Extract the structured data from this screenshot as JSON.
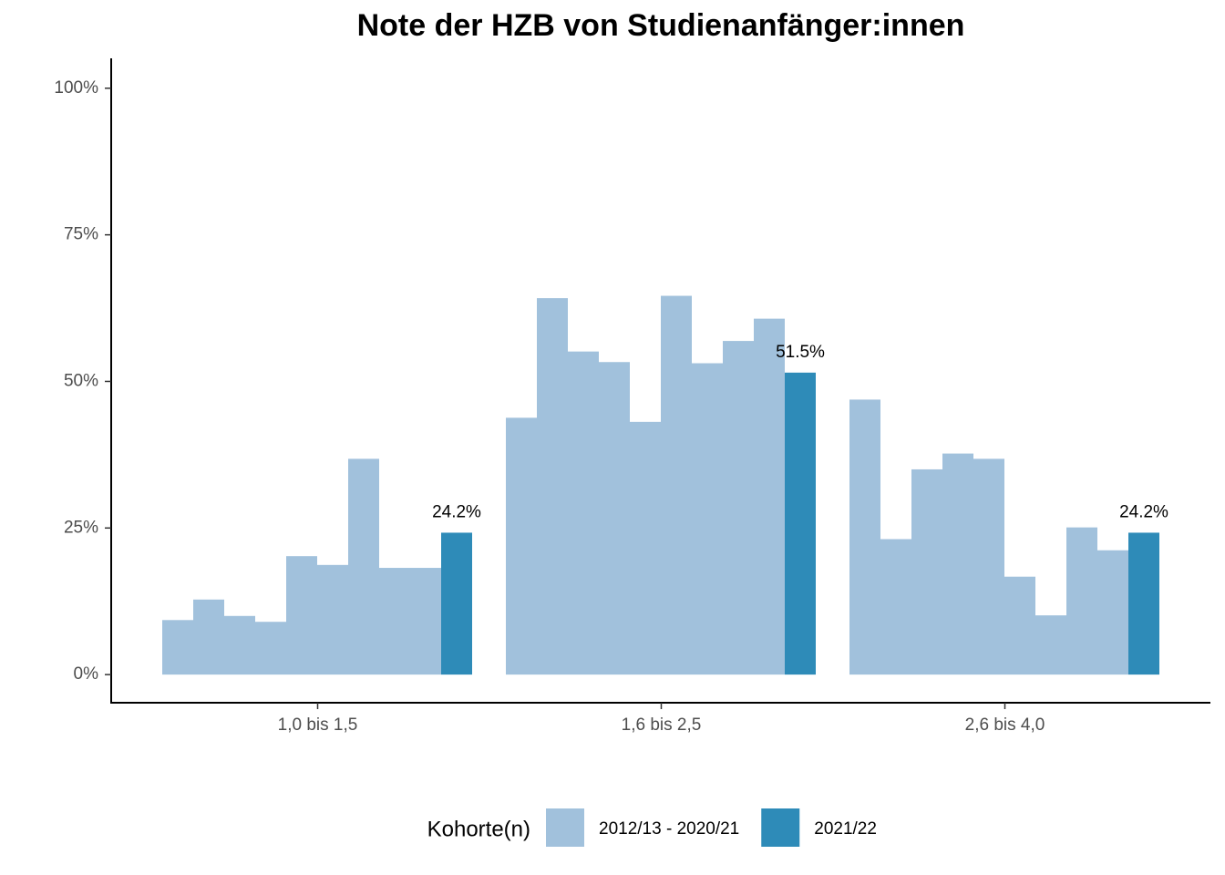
{
  "chart_data": {
    "type": "bar",
    "title": "Note der HZB von Studienanfänger:innen",
    "categories": [
      "1,0 bis 1,5",
      "1,6 bis 2,5",
      "2,6 bis 4,0"
    ],
    "series": [
      {
        "name": "2012/13 - 2020/21",
        "color": "#a1c1dc",
        "values": [
          [
            9.3,
            12.8,
            10.0,
            9.0,
            20.2,
            18.7,
            36.8,
            18.2,
            18.2
          ],
          [
            43.8,
            64.2,
            55.1,
            53.3,
            43.1,
            64.6,
            53.1,
            56.9,
            60.7
          ],
          [
            46.9,
            23.1,
            35.0,
            37.7,
            36.8,
            16.7,
            10.1,
            25.1,
            21.2
          ]
        ]
      },
      {
        "name": "2021/22",
        "color": "#2e8bb8",
        "values": [
          24.2,
          51.5,
          24.2
        ],
        "value_labels": [
          "24.2%",
          "51.5%",
          "24.2%"
        ]
      }
    ],
    "ylim": [
      -4.8,
      105.1
    ],
    "yticks": [
      {
        "value": 0,
        "label": "0%"
      },
      {
        "value": 25,
        "label": "25%"
      },
      {
        "value": 50,
        "label": "50%"
      },
      {
        "value": 75,
        "label": "75%"
      },
      {
        "value": 100,
        "label": "100%"
      }
    ],
    "legend": {
      "title": "Kohorte(n)",
      "position": "bottom"
    },
    "grid": false
  }
}
